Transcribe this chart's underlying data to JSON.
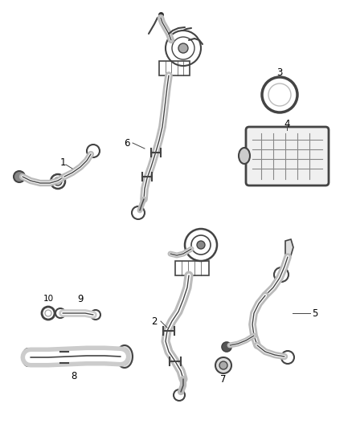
{
  "bg_color": "#ffffff",
  "line_color": "#888888",
  "dark_color": "#444444",
  "label_color": "#000000",
  "font_size": 8.5,
  "figsize": [
    4.38,
    5.33
  ],
  "dpi": 100
}
